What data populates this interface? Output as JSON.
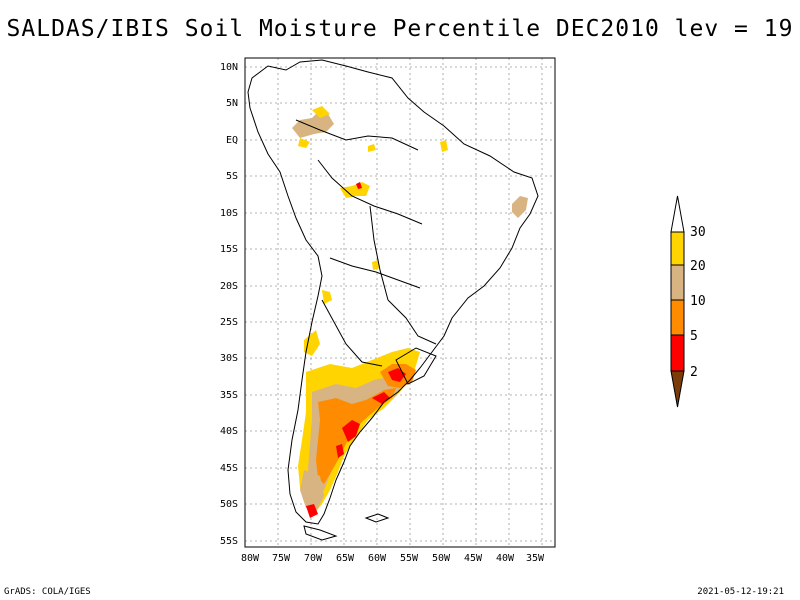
{
  "title": "SALDAS/IBIS Soil Moisture Percentile DEC2010 lev = 19",
  "footer": {
    "left": "GrADS: COLA/IGES",
    "right": "2021-05-12-19:21"
  },
  "axes": {
    "lat_labels": [
      "10N",
      "5N",
      "EQ",
      "5S",
      "10S",
      "15S",
      "20S",
      "25S",
      "30S",
      "35S",
      "40S",
      "45S",
      "50S",
      "55S"
    ],
    "lon_labels": [
      "80W",
      "75W",
      "70W",
      "65W",
      "60W",
      "55W",
      "50W",
      "45W",
      "40W",
      "35W"
    ]
  },
  "legend": {
    "labels": [
      "30",
      "20",
      "10",
      "5",
      "2"
    ],
    "colors": {
      "above": "#ffffff",
      "c20_30": "#ffd400",
      "c10_20": "#d8b482",
      "c5_10": "#ff8c00",
      "c2_5": "#ff0000",
      "below": "#7a3d0a"
    }
  }
}
